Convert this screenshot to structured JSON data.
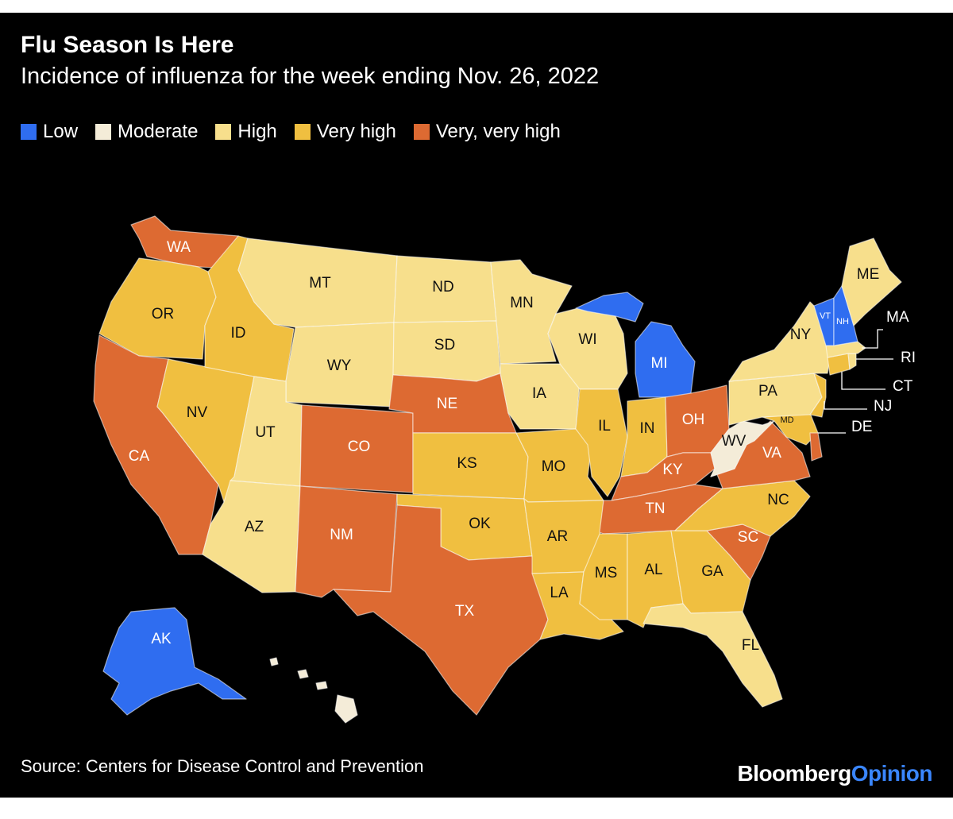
{
  "title": "Flu Season Is Here",
  "subtitle": "Incidence of influenza for the week ending Nov. 26, 2022",
  "legend": [
    {
      "key": "low",
      "label": "Low",
      "color": "#2f6df0"
    },
    {
      "key": "moderate",
      "label": "Moderate",
      "color": "#f4ecd8"
    },
    {
      "key": "high",
      "label": "High",
      "color": "#f7df8c"
    },
    {
      "key": "veryhigh",
      "label": "Very high",
      "color": "#f0bf40"
    },
    {
      "key": "veryveryhigh",
      "label": "Very, very high",
      "color": "#dd6a32"
    }
  ],
  "states": {
    "WA": "veryveryhigh",
    "OR": "veryhigh",
    "CA": "veryveryhigh",
    "NV": "veryhigh",
    "ID": "veryhigh",
    "MT": "high",
    "WY": "high",
    "UT": "high",
    "AZ": "high",
    "CO": "veryveryhigh",
    "NM": "veryveryhigh",
    "ND": "high",
    "SD": "high",
    "NE": "veryveryhigh",
    "KS": "veryhigh",
    "OK": "veryhigh",
    "TX": "veryveryhigh",
    "MN": "high",
    "IA": "high",
    "MO": "veryhigh",
    "AR": "veryhigh",
    "LA": "veryhigh",
    "WI": "high",
    "IL": "veryhigh",
    "MI": "low",
    "IN": "veryhigh",
    "OH": "veryveryhigh",
    "KY": "veryveryhigh",
    "TN": "veryveryhigh",
    "MS": "veryhigh",
    "AL": "veryhigh",
    "GA": "veryhigh",
    "FL": "high",
    "SC": "veryveryhigh",
    "NC": "veryhigh",
    "VA": "veryveryhigh",
    "WV": "moderate",
    "MD": "veryhigh",
    "DE": "veryveryhigh",
    "PA": "high",
    "NJ": "veryhigh",
    "NY": "high",
    "CT": "veryhigh",
    "RI": "high",
    "MA": "high",
    "VT": "low",
    "NH": "low",
    "ME": "high",
    "AK": "low",
    "HI": "moderate"
  },
  "leader_labels": [
    "MA",
    "RI",
    "CT",
    "NJ",
    "DE"
  ],
  "source": "Source: Centers for Disease Control and Prevention",
  "brand": {
    "part1": "Bloomberg",
    "part2": "Opinion"
  }
}
